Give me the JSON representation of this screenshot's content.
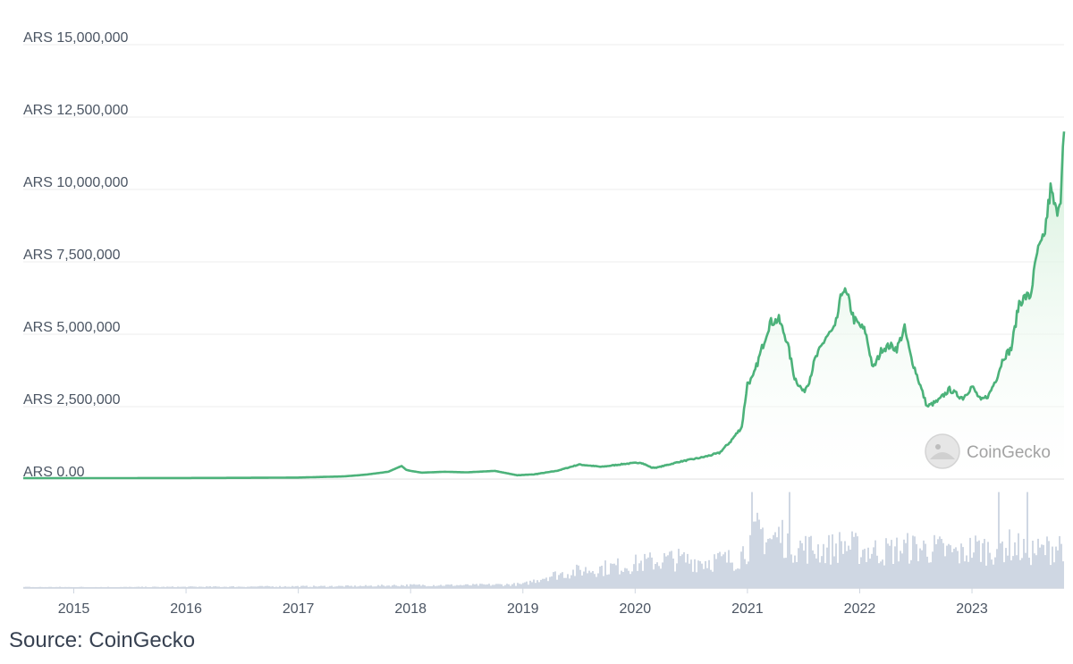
{
  "chart_data": {
    "type": "area",
    "title": "",
    "currency": "ARS",
    "ylim": [
      0,
      15000000
    ],
    "yticks": [
      "ARS 15,000,000",
      "ARS 12,500,000",
      "ARS 10,000,000",
      "ARS 7,500,000",
      "ARS 5,000,000",
      "ARS 2,500,000",
      "ARS 0.00"
    ],
    "ytick_values": [
      15000000,
      12500000,
      10000000,
      7500000,
      5000000,
      2500000,
      0
    ],
    "xticks": [
      "2015",
      "2016",
      "2017",
      "2018",
      "2019",
      "2020",
      "2021",
      "2022",
      "2023"
    ],
    "xtick_values": [
      2015,
      2016,
      2017,
      2018,
      2019,
      2020,
      2021,
      2022,
      2023
    ],
    "xlim": [
      2014.55,
      2023.82
    ],
    "series": [
      {
        "name": "Price",
        "x": [
          2014.55,
          2015.0,
          2015.5,
          2016.0,
          2016.5,
          2017.0,
          2017.4,
          2017.6,
          2017.8,
          2017.92,
          2017.96,
          2018.0,
          2018.1,
          2018.3,
          2018.5,
          2018.75,
          2018.95,
          2019.1,
          2019.3,
          2019.5,
          2019.7,
          2019.9,
          2020.05,
          2020.15,
          2020.2,
          2020.4,
          2020.6,
          2020.75,
          2020.85,
          2020.95,
          2021.0,
          2021.05,
          2021.12,
          2021.2,
          2021.28,
          2021.35,
          2021.42,
          2021.5,
          2021.55,
          2021.6,
          2021.7,
          2021.78,
          2021.85,
          2021.9,
          2021.95,
          2022.05,
          2022.12,
          2022.2,
          2022.27,
          2022.33,
          2022.4,
          2022.45,
          2022.5,
          2022.6,
          2022.7,
          2022.8,
          2022.87,
          2022.92,
          2023.0,
          2023.08,
          2023.15,
          2023.22,
          2023.28,
          2023.35,
          2023.42,
          2023.48,
          2023.52,
          2023.58,
          2023.64,
          2023.7,
          2023.75,
          2023.79,
          2023.82
        ],
        "values": [
          30000,
          30000,
          32000,
          35000,
          40000,
          50000,
          90000,
          150000,
          250000,
          450000,
          320000,
          280000,
          220000,
          250000,
          230000,
          280000,
          130000,
          160000,
          280000,
          500000,
          420000,
          520000,
          570000,
          390000,
          400000,
          600000,
          750000,
          900000,
          1300000,
          1800000,
          3300000,
          3500000,
          4400000,
          5400000,
          5500000,
          4800000,
          3500000,
          3000000,
          3400000,
          4100000,
          4900000,
          5200000,
          6600000,
          6200000,
          5500000,
          5100000,
          3800000,
          4500000,
          4600000,
          4500000,
          5200000,
          4300000,
          3700000,
          2500000,
          2700000,
          3100000,
          2900000,
          2800000,
          3200000,
          2700000,
          2900000,
          3500000,
          4200000,
          4500000,
          6100000,
          6300000,
          6300000,
          7800000,
          8300000,
          10000000,
          9200000,
          9800000,
          12000000
        ]
      },
      {
        "name": "Volume",
        "relative": true,
        "x": [
          2014.55,
          2015.5,
          2016.5,
          2017.5,
          2018.0,
          2018.5,
          2019.0,
          2019.2,
          2019.5,
          2019.8,
          2020.0,
          2020.3,
          2020.6,
          2020.9,
          2021.0,
          2021.1,
          2021.2,
          2021.3,
          2021.4,
          2021.5,
          2021.7,
          2021.85,
          2022.0,
          2022.2,
          2022.45,
          2022.7,
          2022.9,
          2023.0,
          2023.15,
          2023.3,
          2023.45,
          2023.6,
          2023.7,
          2023.82
        ],
        "values": [
          0.01,
          0.01,
          0.015,
          0.02,
          0.03,
          0.03,
          0.04,
          0.12,
          0.18,
          0.22,
          0.25,
          0.3,
          0.28,
          0.3,
          0.45,
          0.6,
          0.5,
          0.55,
          0.45,
          0.42,
          0.4,
          0.45,
          0.4,
          0.38,
          0.42,
          0.4,
          0.35,
          0.42,
          0.4,
          0.45,
          0.4,
          0.38,
          0.42,
          0.48
        ]
      }
    ],
    "colors": {
      "line": "#4cb27a",
      "area_top": "#d6f0dc",
      "volume": "#cfd7e3",
      "grid": "#eeeeee",
      "axis_text": "#4b5563"
    },
    "watermark": "CoinGecko"
  },
  "source_text": "Source: CoinGecko"
}
